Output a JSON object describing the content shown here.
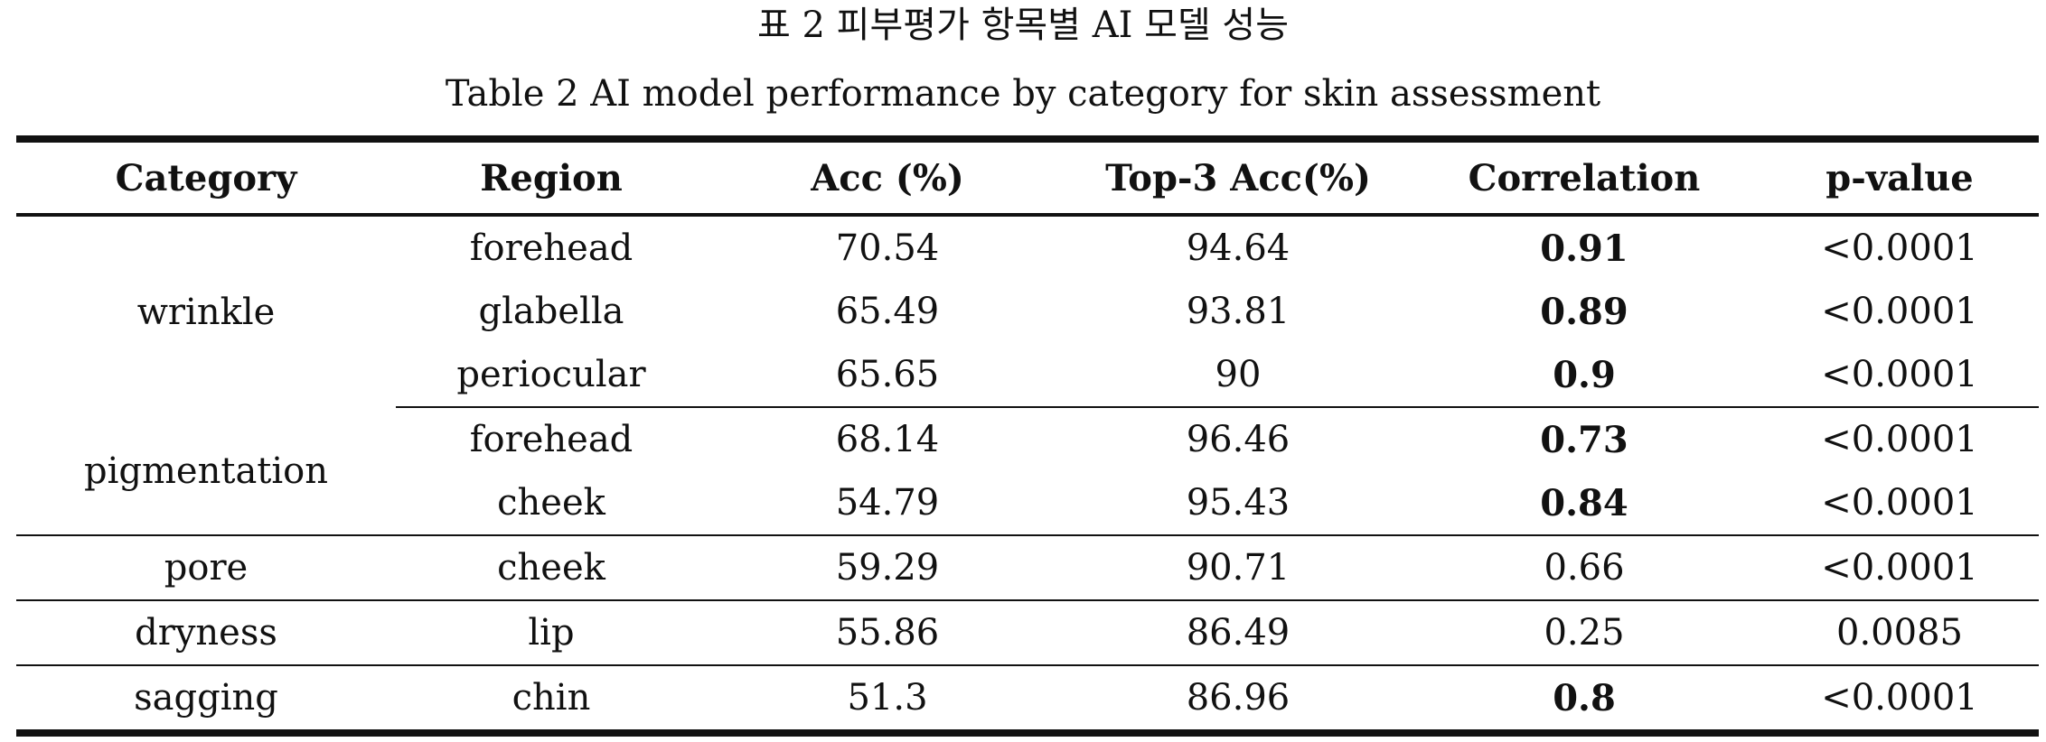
{
  "caption_korean": "표 2 피부평가 항목별 AI 모델 성능",
  "caption_english": "Table 2 AI model performance by category for skin assessment",
  "columns": [
    "Category",
    "Region",
    "Acc (%)",
    "Top-3 Acc(%)",
    "Correlation",
    "p-value"
  ],
  "groups": [
    {
      "category": "wrinkle",
      "rows": [
        {
          "region": "forehead",
          "acc": "70.54",
          "top3": "94.64",
          "correlation": "0.91",
          "correlation_bold": true,
          "p": "<0.0001"
        },
        {
          "region": "glabella",
          "acc": "65.49",
          "top3": "93.81",
          "correlation": "0.89",
          "correlation_bold": true,
          "p": "<0.0001"
        },
        {
          "region": "periocular",
          "acc": "65.65",
          "top3": "90",
          "correlation": "0.9",
          "correlation_bold": true,
          "p": "<0.0001"
        }
      ]
    },
    {
      "category": "pigmentation",
      "rows": [
        {
          "region": "forehead",
          "acc": "68.14",
          "top3": "96.46",
          "correlation": "0.73",
          "correlation_bold": true,
          "p": "<0.0001"
        },
        {
          "region": "cheek",
          "acc": "54.79",
          "top3": "95.43",
          "correlation": "0.84",
          "correlation_bold": true,
          "p": "<0.0001"
        }
      ]
    },
    {
      "category": "pore",
      "rows": [
        {
          "region": "cheek",
          "acc": "59.29",
          "top3": "90.71",
          "correlation": "0.66",
          "correlation_bold": false,
          "p": "<0.0001"
        }
      ]
    },
    {
      "category": "dryness",
      "rows": [
        {
          "region": "lip",
          "acc": "55.86",
          "top3": "86.49",
          "correlation": "0.25",
          "correlation_bold": false,
          "p": "0.0085"
        }
      ]
    },
    {
      "category": "sagging",
      "rows": [
        {
          "region": "chin",
          "acc": "51.3",
          "top3": "86.96",
          "correlation": "0.8",
          "correlation_bold": true,
          "p": "<0.0001"
        }
      ]
    }
  ]
}
